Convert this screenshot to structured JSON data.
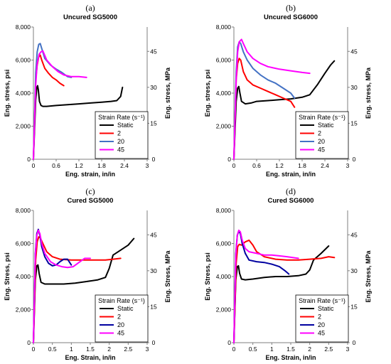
{
  "chart_data": [
    {
      "type": "line",
      "letter": "(a)",
      "title": "Uncured SG5000",
      "xlabel": "Eng. strain, in/in",
      "ylabel": "Eng. stress, psi",
      "y2label": "Eng. stress, MPa",
      "xlim": [
        0,
        3
      ],
      "ylim": [
        0,
        8000
      ],
      "y2lim": [
        0,
        55.16
      ],
      "xticks": [
        "0",
        "0.6",
        "1.2",
        "1.8",
        "2.4",
        "3"
      ],
      "yticks": [
        "0",
        "2,000",
        "4,000",
        "6,000",
        "8,000"
      ],
      "y2ticks": [
        "0",
        "15",
        "30",
        "45"
      ],
      "legend_title": "Strain Rate (s⁻¹)",
      "legend_position": "lower-right",
      "series": [
        {
          "name": "Static",
          "color": "#000000",
          "x": [
            0,
            0.06,
            0.09,
            0.11,
            0.13,
            0.16,
            0.2,
            0.25,
            0.35,
            0.6,
            0.9,
            1.2,
            1.5,
            1.8,
            2.05,
            2.2,
            2.3,
            2.35
          ],
          "y": [
            0,
            3600,
            4350,
            4450,
            4200,
            3500,
            3250,
            3200,
            3200,
            3250,
            3300,
            3350,
            3400,
            3450,
            3500,
            3550,
            3800,
            4350
          ]
        },
        {
          "name": "2",
          "color": "#ff0000",
          "x": [
            0,
            0.06,
            0.1,
            0.14,
            0.18,
            0.22,
            0.3,
            0.4,
            0.5,
            0.6,
            0.7,
            0.8
          ],
          "y": [
            0,
            4800,
            5700,
            6200,
            6300,
            6000,
            5500,
            5200,
            4950,
            4800,
            4600,
            4450
          ]
        },
        {
          "name": "20",
          "color": "#4472c4",
          "x": [
            0,
            0.06,
            0.1,
            0.14,
            0.18,
            0.22,
            0.3,
            0.45,
            0.6,
            0.75,
            0.9,
            1.0
          ],
          "y": [
            0,
            5200,
            6500,
            6950,
            7000,
            6700,
            6100,
            5700,
            5450,
            5250,
            5000,
            4950
          ]
        },
        {
          "name": "45",
          "color": "#ff00ff",
          "x": [
            0,
            0.06,
            0.1,
            0.15,
            0.2,
            0.25,
            0.35,
            0.5,
            0.65,
            0.8,
            1.0,
            1.2,
            1.4
          ],
          "y": [
            0,
            4500,
            5800,
            6350,
            6500,
            6550,
            6000,
            5600,
            5300,
            5100,
            5000,
            5000,
            4950
          ]
        }
      ]
    },
    {
      "type": "line",
      "letter": "(b)",
      "title": "Uncured SG6000",
      "xlabel": "Eng. strain, in/in",
      "ylabel": "Eng. stress, psi",
      "y2label": "Eng. stress, MPa",
      "xlim": [
        0,
        3
      ],
      "ylim": [
        0,
        8000
      ],
      "y2lim": [
        0,
        55.16
      ],
      "xticks": [
        "0",
        "0.6",
        "1.2",
        "1.8",
        "2.4",
        "3"
      ],
      "yticks": [
        "0",
        "2,000",
        "4,000",
        "6,000",
        "8,000"
      ],
      "y2ticks": [
        "0",
        "15",
        "30",
        "45"
      ],
      "legend_title": "Strain Rate (s⁻¹)",
      "legend_position": "lower-right",
      "series": [
        {
          "name": "Static",
          "color": "#000000",
          "x": [
            0,
            0.06,
            0.1,
            0.13,
            0.16,
            0.2,
            0.3,
            0.45,
            0.6,
            0.9,
            1.2,
            1.5,
            1.8,
            2.0,
            2.2,
            2.4,
            2.55,
            2.65
          ],
          "y": [
            0,
            3500,
            4300,
            4400,
            4000,
            3500,
            3350,
            3400,
            3500,
            3550,
            3600,
            3650,
            3750,
            3900,
            4500,
            5200,
            5700,
            5950
          ]
        },
        {
          "name": "2",
          "color": "#ff0000",
          "x": [
            0,
            0.06,
            0.1,
            0.14,
            0.18,
            0.25,
            0.35,
            0.5,
            0.7,
            0.9,
            1.1,
            1.3,
            1.5,
            1.6
          ],
          "y": [
            0,
            4800,
            5800,
            6100,
            6000,
            5300,
            4800,
            4500,
            4300,
            4100,
            3900,
            3700,
            3500,
            3150
          ]
        },
        {
          "name": "20",
          "color": "#4472c4",
          "x": [
            0,
            0.06,
            0.1,
            0.14,
            0.18,
            0.25,
            0.35,
            0.5,
            0.7,
            0.9,
            1.1,
            1.3,
            1.5,
            1.6
          ],
          "y": [
            0,
            5300,
            6800,
            7100,
            7000,
            6500,
            6000,
            5500,
            5100,
            4800,
            4600,
            4300,
            4000,
            3700
          ]
        },
        {
          "name": "45",
          "color": "#ff00ff",
          "x": [
            0,
            0.06,
            0.1,
            0.14,
            0.2,
            0.25,
            0.35,
            0.5,
            0.7,
            0.9,
            1.2,
            1.5,
            1.8,
            2.0
          ],
          "y": [
            0,
            4800,
            6500,
            7100,
            7250,
            7000,
            6500,
            6100,
            5800,
            5600,
            5450,
            5350,
            5250,
            5200
          ]
        }
      ]
    },
    {
      "type": "line",
      "letter": "(c)",
      "title": "Cured SG5000",
      "xlabel": "Eng. Strain, in/in",
      "ylabel": "Eng. Stress, psi",
      "y2label": "Eng. Stress, MPa",
      "xlim": [
        0,
        3
      ],
      "ylim": [
        0,
        8000
      ],
      "y2lim": [
        0,
        55.16
      ],
      "xticks": [
        "0",
        "0.5",
        "1",
        "1.5",
        "2",
        "2.5",
        "3"
      ],
      "yticks": [
        "0",
        "2,000",
        "4,000",
        "6,000",
        "8,000"
      ],
      "y2ticks": [
        "0",
        "15",
        "30",
        "45"
      ],
      "legend_title": "Strain Rate (s⁻¹)",
      "legend_position": "lower-right",
      "series": [
        {
          "name": "Static",
          "color": "#000000",
          "x": [
            0,
            0.05,
            0.09,
            0.12,
            0.15,
            0.2,
            0.3,
            0.5,
            0.8,
            1.1,
            1.4,
            1.7,
            1.9,
            2.0,
            2.1,
            2.3,
            2.5,
            2.65
          ],
          "y": [
            0,
            3800,
            4650,
            4700,
            4200,
            3650,
            3550,
            3550,
            3550,
            3600,
            3700,
            3800,
            3950,
            4500,
            5300,
            5600,
            5900,
            6300
          ]
        },
        {
          "name": "2",
          "color": "#ff0000",
          "x": [
            0,
            0.06,
            0.1,
            0.14,
            0.18,
            0.25,
            0.35,
            0.5,
            0.7,
            1.0,
            1.3,
            1.6,
            1.9,
            2.1,
            2.3
          ],
          "y": [
            0,
            5000,
            6100,
            6400,
            6350,
            6000,
            5500,
            5200,
            5050,
            5000,
            5000,
            5000,
            5000,
            5050,
            5100
          ]
        },
        {
          "name": "20",
          "color": "#0000a0",
          "x": [
            0,
            0.05,
            0.09,
            0.13,
            0.17,
            0.22,
            0.3,
            0.4,
            0.5,
            0.6,
            0.7,
            0.8,
            0.9,
            1.0
          ],
          "y": [
            0,
            5400,
            6600,
            6850,
            6500,
            5800,
            5200,
            4800,
            4650,
            4700,
            4900,
            5050,
            5050,
            4700
          ]
        },
        {
          "name": "45",
          "color": "#ff00ff",
          "x": [
            0,
            0.05,
            0.09,
            0.13,
            0.17,
            0.22,
            0.3,
            0.45,
            0.6,
            0.75,
            0.9,
            1.05,
            1.2,
            1.35,
            1.5
          ],
          "y": [
            0,
            5300,
            6500,
            6800,
            6600,
            6000,
            5400,
            4900,
            4700,
            4600,
            4550,
            4600,
            4850,
            5100,
            5100
          ]
        }
      ]
    },
    {
      "type": "line",
      "letter": "(d)",
      "title": "Cured SG6000",
      "xlabel": "Eng. Strain, in/in",
      "ylabel": "Eng. Stress, psi",
      "y2label": "Eng. Stress, MPa",
      "xlim": [
        0,
        3
      ],
      "ylim": [
        0,
        8000
      ],
      "y2lim": [
        0,
        55.16
      ],
      "xticks": [
        "0",
        "0.5",
        "1",
        "1.5",
        "2",
        "2.5",
        "3"
      ],
      "yticks": [
        "0",
        "2,000",
        "4,000",
        "6,000",
        "8,000"
      ],
      "y2ticks": [
        "0",
        "15",
        "30",
        "45"
      ],
      "legend_title": "Strain Rate (s⁻¹)",
      "legend_position": "lower-right",
      "series": [
        {
          "name": "Static",
          "color": "#000000",
          "x": [
            0,
            0.05,
            0.09,
            0.12,
            0.15,
            0.2,
            0.3,
            0.5,
            0.8,
            1.1,
            1.4,
            1.7,
            1.9,
            2.0,
            2.1,
            2.3,
            2.5
          ],
          "y": [
            0,
            3800,
            4600,
            4650,
            4200,
            3850,
            3800,
            3850,
            3950,
            4000,
            4000,
            4050,
            4150,
            4400,
            5000,
            5400,
            5850
          ]
        },
        {
          "name": "2",
          "color": "#ff0000",
          "x": [
            0,
            0.06,
            0.1,
            0.14,
            0.2,
            0.3,
            0.4,
            0.5,
            0.6,
            0.8,
            1.1,
            1.4,
            1.7,
            2.0,
            2.3,
            2.5,
            2.65
          ],
          "y": [
            0,
            4800,
            5800,
            5950,
            5900,
            6100,
            6200,
            5900,
            5500,
            5200,
            5050,
            5000,
            5000,
            5050,
            5100,
            5200,
            5150
          ]
        },
        {
          "name": "20",
          "color": "#0000a0",
          "x": [
            0,
            0.05,
            0.09,
            0.13,
            0.17,
            0.22,
            0.3,
            0.4,
            0.6,
            0.8,
            1.0,
            1.2,
            1.35,
            1.45
          ],
          "y": [
            0,
            5400,
            6500,
            6750,
            6600,
            6000,
            5400,
            5000,
            4900,
            4850,
            4750,
            4600,
            4350,
            4150
          ]
        },
        {
          "name": "45",
          "color": "#ff00ff",
          "x": [
            0,
            0.05,
            0.09,
            0.13,
            0.17,
            0.22,
            0.3,
            0.4,
            0.6,
            0.8,
            1.0,
            1.2,
            1.4,
            1.55,
            1.7
          ],
          "y": [
            0,
            5300,
            6500,
            6800,
            6700,
            6200,
            5700,
            5500,
            5400,
            5300,
            5300,
            5250,
            5200,
            5150,
            5100
          ]
        }
      ]
    }
  ]
}
